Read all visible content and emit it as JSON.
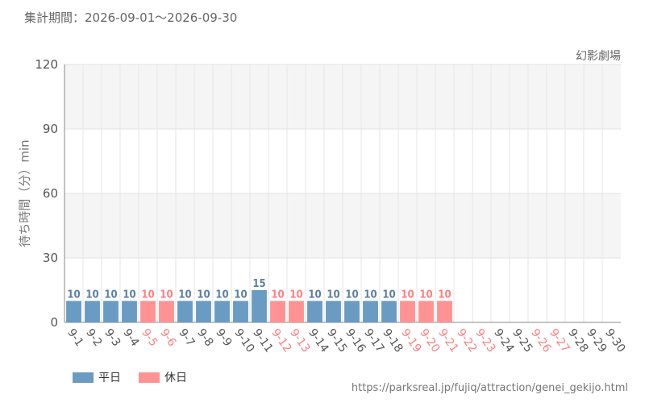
{
  "header": {
    "period_label": "集計期間：2026-09-01～2026-09-30"
  },
  "colors": {
    "weekday": "#6a9bc3",
    "holiday": "#ff9393",
    "weekday_text": "#5a7fa5",
    "holiday_text": "#ff7f7f",
    "axis_text": "#555555"
  },
  "legend": [
    {
      "label": "平日",
      "color": "#6a9bc3"
    },
    {
      "label": "休日",
      "color": "#ff9393"
    }
  ],
  "footer": {
    "source": "https://parksreal.jp/fujiq/attraction/genei_gekijo.html"
  },
  "chart_data": {
    "type": "bar",
    "title": "幻影劇場",
    "xlabel": "",
    "ylabel": "待ち時間（分）min",
    "ylim": [
      0,
      120
    ],
    "yticks": [
      0,
      30,
      60,
      90,
      120
    ],
    "grid": true,
    "categories": [
      "9-1",
      "9-2",
      "9-3",
      "9-4",
      "9-5",
      "9-6",
      "9-7",
      "9-8",
      "9-9",
      "9-10",
      "9-11",
      "9-12",
      "9-13",
      "9-14",
      "9-15",
      "9-16",
      "9-17",
      "9-18",
      "9-19",
      "9-20",
      "9-21",
      "9-22",
      "9-23",
      "9-24",
      "9-25",
      "9-26",
      "9-27",
      "9-28",
      "9-29",
      "9-30"
    ],
    "holiday": [
      false,
      false,
      false,
      false,
      true,
      true,
      false,
      false,
      false,
      false,
      false,
      true,
      true,
      false,
      false,
      false,
      false,
      false,
      true,
      true,
      true,
      true,
      true,
      false,
      false,
      true,
      true,
      false,
      false,
      false
    ],
    "values": [
      10,
      10,
      10,
      10,
      10,
      10,
      10,
      10,
      10,
      10,
      15,
      10,
      10,
      10,
      10,
      10,
      10,
      10,
      10,
      10,
      10,
      null,
      null,
      null,
      null,
      null,
      null,
      null,
      null,
      null
    ]
  }
}
